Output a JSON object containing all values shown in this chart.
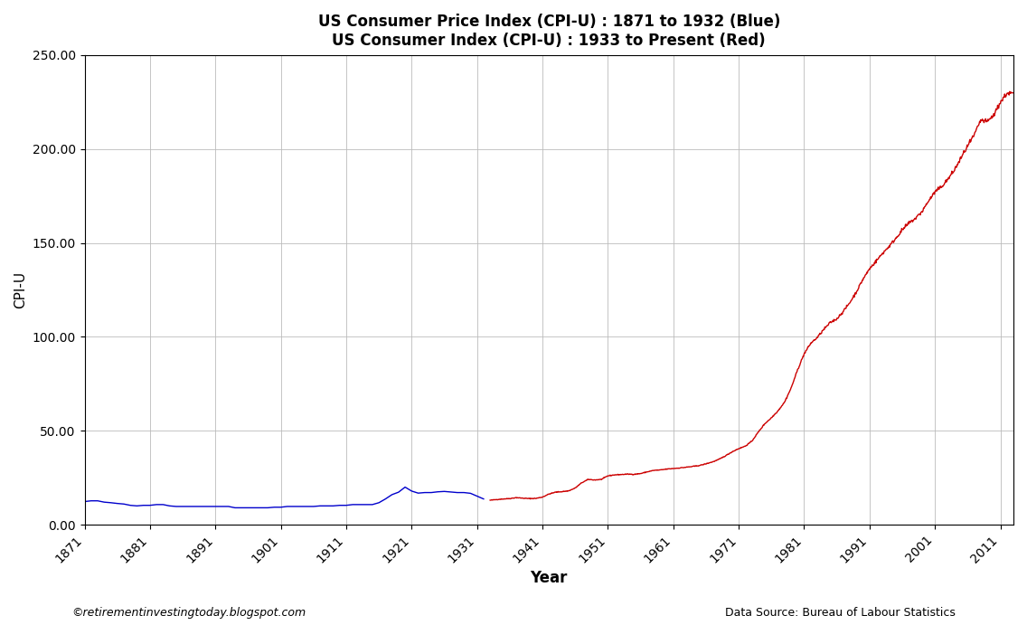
{
  "title_line1": "US Consumer Price Index (CPI-U) : 1871 to 1932 (Blue)",
  "title_line2": "US Consumer Index (CPI-U) : 1933 to Present (Red)",
  "xlabel": "Year",
  "ylabel": "CPI-U",
  "xlim": [
    1871,
    2013
  ],
  "ylim": [
    0,
    250
  ],
  "yticks": [
    0.0,
    50.0,
    100.0,
    150.0,
    200.0,
    250.0
  ],
  "xticks": [
    1871,
    1881,
    1891,
    1901,
    1911,
    1921,
    1931,
    1941,
    1951,
    1961,
    1971,
    1981,
    1991,
    2001,
    2011
  ],
  "footnote_left": "©retirementinvestingtoday.blogspot.com",
  "footnote_right": "Data Source: Bureau of Labour Statistics",
  "color_blue": "#0000CC",
  "color_red": "#CC0000",
  "blue_data": {
    "years": [
      1871,
      1872,
      1873,
      1874,
      1875,
      1876,
      1877,
      1878,
      1879,
      1880,
      1881,
      1882,
      1883,
      1884,
      1885,
      1886,
      1887,
      1888,
      1889,
      1890,
      1891,
      1892,
      1893,
      1894,
      1895,
      1896,
      1897,
      1898,
      1899,
      1900,
      1901,
      1902,
      1903,
      1904,
      1905,
      1906,
      1907,
      1908,
      1909,
      1910,
      1911,
      1912,
      1913,
      1914,
      1915,
      1916,
      1917,
      1918,
      1919,
      1920,
      1921,
      1922,
      1923,
      1924,
      1925,
      1926,
      1927,
      1928,
      1929,
      1930,
      1931,
      1932
    ],
    "values": [
      12.3,
      12.7,
      12.7,
      12.0,
      11.7,
      11.3,
      11.0,
      10.3,
      10.0,
      10.3,
      10.3,
      10.7,
      10.7,
      10.0,
      9.7,
      9.7,
      9.7,
      9.7,
      9.7,
      9.7,
      9.7,
      9.7,
      9.7,
      9.0,
      9.0,
      9.0,
      9.0,
      9.0,
      9.0,
      9.3,
      9.3,
      9.7,
      9.7,
      9.7,
      9.7,
      9.7,
      10.0,
      10.0,
      10.0,
      10.3,
      10.3,
      10.7,
      10.7,
      10.7,
      10.7,
      11.7,
      13.7,
      16.0,
      17.3,
      20.0,
      17.9,
      16.8,
      17.1,
      17.1,
      17.5,
      17.7,
      17.4,
      17.1,
      17.1,
      16.7,
      15.2,
      13.7
    ]
  },
  "red_data_annual": {
    "years": [
      1933,
      1934,
      1935,
      1936,
      1937,
      1938,
      1939,
      1940,
      1941,
      1942,
      1943,
      1944,
      1945,
      1946,
      1947,
      1948,
      1949,
      1950,
      1951,
      1952,
      1953,
      1954,
      1955,
      1956,
      1957,
      1958,
      1959,
      1960,
      1961,
      1962,
      1963,
      1964,
      1965,
      1966,
      1967,
      1968,
      1969,
      1970,
      1971,
      1972,
      1973,
      1974,
      1975,
      1976,
      1977,
      1978,
      1979,
      1980,
      1981,
      1982,
      1983,
      1984,
      1985,
      1986,
      1987,
      1988,
      1989,
      1990,
      1991,
      1992,
      1993,
      1994,
      1995,
      1996,
      1997,
      1998,
      1999,
      2000,
      2001,
      2002,
      2003,
      2004,
      2005,
      2006,
      2007,
      2008,
      2009,
      2010,
      2011,
      2012
    ],
    "values": [
      13.0,
      13.4,
      13.7,
      13.9,
      14.4,
      14.1,
      13.9,
      14.0,
      14.7,
      16.3,
      17.3,
      17.6,
      18.0,
      19.5,
      22.3,
      24.1,
      23.8,
      24.1,
      26.0,
      26.5,
      26.7,
      26.9,
      26.8,
      27.2,
      28.1,
      28.9,
      29.1,
      29.6,
      29.9,
      30.2,
      30.6,
      31.0,
      31.5,
      32.4,
      33.4,
      34.8,
      36.7,
      38.8,
      40.5,
      41.8,
      44.4,
      49.3,
      53.8,
      56.9,
      60.6,
      65.2,
      72.6,
      82.4,
      90.9,
      96.5,
      99.6,
      103.9,
      107.6,
      109.6,
      113.6,
      118.3,
      124.0,
      130.7,
      136.2,
      140.3,
      144.5,
      148.2,
      152.4,
      156.9,
      160.5,
      163.0,
      166.6,
      172.2,
      177.1,
      179.9,
      184.0,
      188.9,
      195.3,
      201.6,
      207.3,
      215.3,
      214.5,
      218.1,
      224.9,
      229.6
    ]
  },
  "monthly_noise_seed": 42,
  "background_color": "#ffffff",
  "grid_color": "#bbbbbb",
  "figsize": [
    11.36,
    6.91
  ],
  "dpi": 100
}
